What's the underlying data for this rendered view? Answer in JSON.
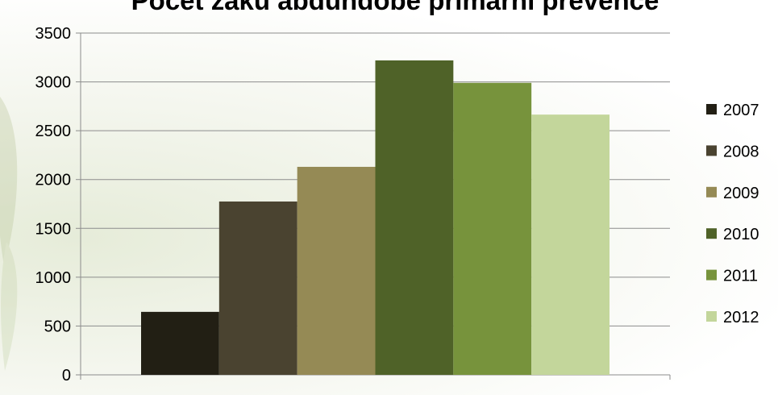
{
  "chart_data": {
    "type": "bar",
    "title": "Počet žáků abdundobé primární prevence",
    "xlabel": "",
    "ylabel": "",
    "categories": [
      ""
    ],
    "series": [
      {
        "name": "2007",
        "values": [
          645
        ],
        "color": "#221f14"
      },
      {
        "name": "2008",
        "values": [
          1775
        ],
        "color": "#4a4330"
      },
      {
        "name": "2009",
        "values": [
          2130
        ],
        "color": "#958a55"
      },
      {
        "name": "2010",
        "values": [
          3220
        ],
        "color": "#4f6228"
      },
      {
        "name": "2011",
        "values": [
          2990
        ],
        "color": "#77933c"
      },
      {
        "name": "2012",
        "values": [
          2665
        ],
        "color": "#c3d69b"
      }
    ],
    "ylim": [
      0,
      3500
    ],
    "yticks": [
      "0",
      "500",
      "1000",
      "1500",
      "2000",
      "2500",
      "3000",
      "3500"
    ],
    "grid": true,
    "legend": "right"
  }
}
